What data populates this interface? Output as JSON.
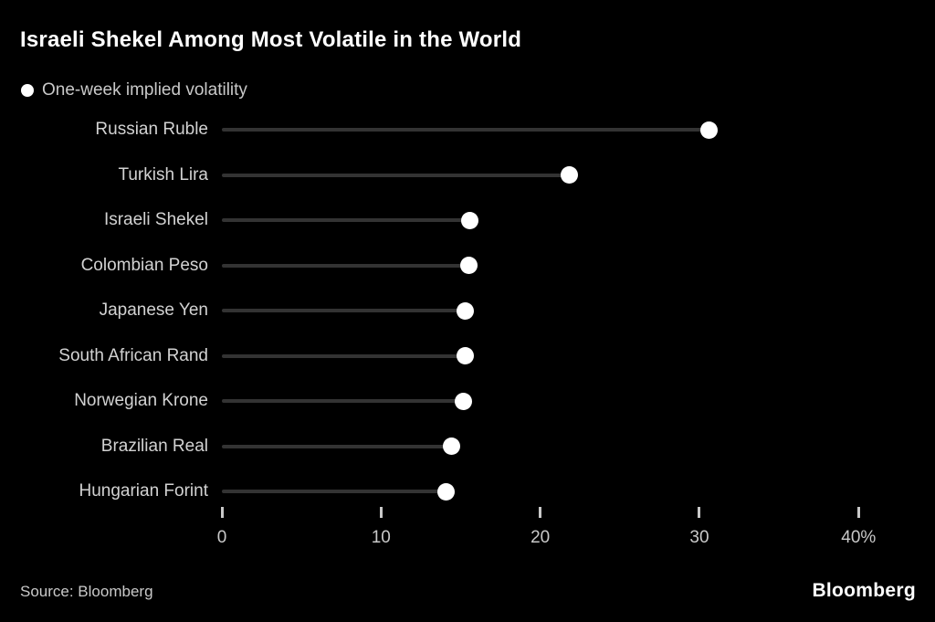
{
  "title": "Israeli Shekel Among Most Volatile in the World",
  "legend": {
    "label": "One-week implied volatility"
  },
  "chart_data": {
    "type": "bar",
    "variant": "horizontal-lollipop",
    "title": "Israeli Shekel Among Most Volatile in the World",
    "legend_entries": [
      "One-week implied volatility"
    ],
    "categories": [
      "Russian Ruble",
      "Turkish Lira",
      "Israeli Shekel",
      "Colombian Peso",
      "Japanese Yen",
      "South African Rand",
      "Norwegian Krone",
      "Brazilian Real",
      "Hungarian Forint"
    ],
    "values": [
      30.6,
      21.8,
      15.6,
      15.5,
      15.3,
      15.3,
      15.2,
      14.4,
      14.1
    ],
    "xlabel": "",
    "ylabel": "",
    "xlim": [
      0,
      40
    ],
    "x_ticks": [
      0,
      10,
      20,
      30,
      40
    ],
    "x_tick_labels": [
      "0",
      "10",
      "20",
      "30",
      "40%"
    ],
    "grid": false,
    "unit": "%"
  },
  "footer": {
    "source": "Source: Bloomberg",
    "logo": "Bloomberg"
  },
  "colors": {
    "background": "#000000",
    "title": "#ffffff",
    "row_label": "#d2d2d2",
    "stem_line": "#333333",
    "dot": "#ffffff",
    "axis": "#c9c9c9"
  }
}
